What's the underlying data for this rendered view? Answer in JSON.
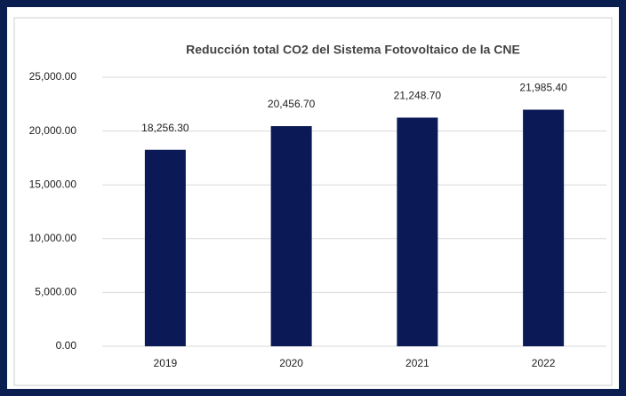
{
  "chart_data": {
    "type": "bar",
    "title": "Reducción total CO2 del Sistema Fotovoltaico de la CNE",
    "categories": [
      "2019",
      "2020",
      "2021",
      "2022"
    ],
    "values": [
      18256.3,
      20456.7,
      21248.7,
      21985.4
    ],
    "value_labels": [
      "18,256.30",
      "20,456.70",
      "21,248.70",
      "21,985.40"
    ],
    "color": "#0b1a57",
    "ylim": [
      0,
      25000
    ],
    "yticks": [
      {
        "value": 0,
        "label": "0.00"
      },
      {
        "value": 5000,
        "label": "5,000.00"
      },
      {
        "value": 10000,
        "label": "10,000.00"
      },
      {
        "value": 15000,
        "label": "15,000.00"
      },
      {
        "value": 20000,
        "label": "20,000.00"
      },
      {
        "value": 25000,
        "label": "25,000.00"
      }
    ],
    "grid": true
  }
}
